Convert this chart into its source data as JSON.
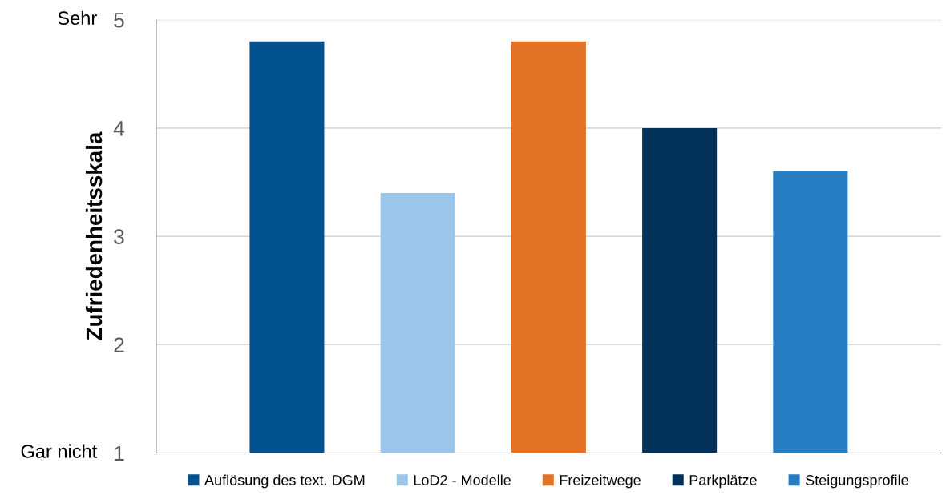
{
  "chart_data": {
    "type": "bar",
    "ylabel": "Zufriedenheitsskala",
    "categories": [
      null,
      null,
      null,
      null,
      null
    ],
    "stacked": true,
    "series": [
      {
        "name": "Auflösung des text. DGM",
        "color": "#02528f",
        "values": [
          4.8,
          null,
          null,
          null,
          null
        ]
      },
      {
        "name": "LoD2 - Modelle",
        "color": "#9bc6e9",
        "values": [
          null,
          3.4,
          null,
          null,
          null
        ]
      },
      {
        "name": "Freizeitwege",
        "color": "#e27326",
        "values": [
          null,
          null,
          4.8,
          null,
          null
        ]
      },
      {
        "name": "Parkplätze",
        "color": "#02325a",
        "values": [
          null,
          null,
          null,
          4.0,
          null
        ]
      },
      {
        "name": "Steigungsprofile",
        "color": "#277dc2",
        "values": [
          null,
          null,
          null,
          null,
          3.6
        ]
      }
    ],
    "ylim": [
      1,
      5
    ],
    "yticks": [
      1,
      2,
      3,
      4,
      5
    ],
    "grid": "y",
    "legend": "bottom",
    "annotations": [
      "Sehr",
      "Gar nicht"
    ]
  }
}
